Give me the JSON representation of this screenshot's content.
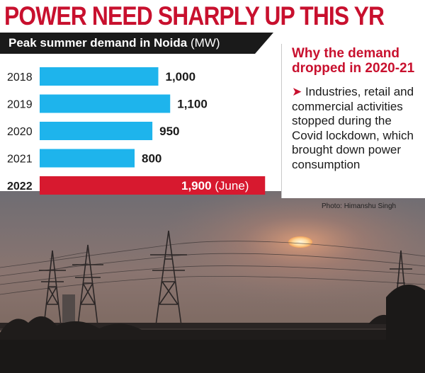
{
  "headline": "POWER NEED SHARPLY UP THIS YR",
  "chart_data": {
    "type": "bar",
    "orientation": "horizontal",
    "title": "Peak summer demand in Noida",
    "title_unit": "(MW)",
    "categories": [
      "2018",
      "2019",
      "2020",
      "2021",
      "2022"
    ],
    "values": [
      1000,
      1100,
      950,
      800,
      1900
    ],
    "value_labels": [
      "1,000",
      "1,100",
      "950",
      "800",
      "1,900"
    ],
    "annotations": [
      "",
      "",
      "",
      "",
      "(June)"
    ],
    "bar_colors": [
      "#1eb4ec",
      "#1eb4ec",
      "#1eb4ec",
      "#1eb4ec",
      "#d7192f"
    ],
    "xlim": [
      0,
      2000
    ],
    "grid": false,
    "legend": "none"
  },
  "sidebar": {
    "heading": "Why the demand dropped in 2020-21",
    "bullet": "➤",
    "body": "Industries, retail and commercial activities stopped during the Covid lockdown, which brought down power consumption"
  },
  "photo_credit": "Photo: Himanshu Singh"
}
